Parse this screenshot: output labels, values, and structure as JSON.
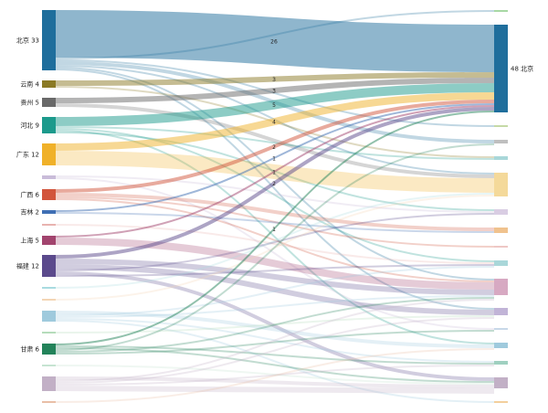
{
  "chart_data": {
    "type": "sankey",
    "colors": {
      "北京": "#1f6e9c",
      "云南": "#8b7a25",
      "贵州": "#696969",
      "河北": "#1c9a8c",
      "广东": "#f0b129",
      "广西": "#d2553c",
      "吉林": "#3f6fb4",
      "上海": "#a2446e",
      "福建": "#5b4a8c",
      "甘肃": "#23835a"
    },
    "nodes": [
      {
        "name": "北京",
        "label": "北京 33",
        "side": "left",
        "value": 33,
        "color": "#1f6e9c"
      },
      {
        "name": "云南",
        "label": "云南 4",
        "side": "left",
        "value": 4,
        "color": "#8b7a25"
      },
      {
        "name": "贵州",
        "label": "贵州 5",
        "side": "left",
        "value": 5,
        "color": "#696969"
      },
      {
        "name": "河北",
        "label": "河北 9",
        "side": "left",
        "value": 9,
        "color": "#1c9a8c"
      },
      {
        "name": "广东",
        "label": "广东 12",
        "side": "left",
        "value": 12,
        "color": "#f0b129"
      },
      {
        "name": "",
        "label": "",
        "side": "left",
        "value": 2,
        "color": "#c9bcd9"
      },
      {
        "name": "广西",
        "label": "广西 6",
        "side": "left",
        "value": 6,
        "color": "#d2553c"
      },
      {
        "name": "吉林",
        "label": "吉林 2",
        "side": "left",
        "value": 2,
        "color": "#3f6fb4"
      },
      {
        "name": "",
        "label": "",
        "side": "left",
        "value": 1,
        "color": "#e8b3b0"
      },
      {
        "name": "上海",
        "label": "上海 5",
        "side": "left",
        "value": 5,
        "color": "#a2446e"
      },
      {
        "name": "福建",
        "label": "福建 12",
        "side": "left",
        "value": 12,
        "color": "#5b4a8c"
      },
      {
        "name": "",
        "label": "",
        "side": "left",
        "value": 1,
        "color": "#a9dbe0"
      },
      {
        "name": "",
        "label": "",
        "side": "left",
        "value": 1,
        "color": "#f3d5b5"
      },
      {
        "name": "",
        "label": "",
        "side": "left",
        "value": 6,
        "color": "#9fcadd"
      },
      {
        "name": "",
        "label": "",
        "side": "left",
        "value": 1,
        "color": "#b5dcbb"
      },
      {
        "name": "甘肃",
        "label": "甘肃 6",
        "side": "left",
        "value": 6,
        "color": "#23835a"
      },
      {
        "name": "",
        "label": "",
        "side": "left",
        "value": 1,
        "color": "#c6e4d2"
      },
      {
        "name": "",
        "label": "",
        "side": "left",
        "value": 8,
        "color": "#c2b0c6"
      },
      {
        "name": "",
        "label": "",
        "side": "left",
        "value": 1,
        "color": "#e9bfa7"
      },
      {
        "name": "",
        "label": "",
        "side": "right",
        "value": 1,
        "color": "#a8d8a4"
      },
      {
        "name": "北京",
        "label": "48 北京",
        "side": "right",
        "value": 48,
        "color": "#1f6e9c"
      },
      {
        "name": "",
        "label": "",
        "side": "right",
        "value": 1,
        "color": "#c5d9a6"
      },
      {
        "name": "",
        "label": "",
        "side": "right",
        "value": 2,
        "color": "#bfbfbf"
      },
      {
        "name": "",
        "label": "",
        "side": "right",
        "value": 2,
        "color": "#a9d7d9"
      },
      {
        "name": "",
        "label": "",
        "side": "right",
        "value": 13,
        "color": "#f4d99a"
      },
      {
        "name": "",
        "label": "",
        "side": "right",
        "value": 3,
        "color": "#d9cde3"
      },
      {
        "name": "",
        "label": "",
        "side": "right",
        "value": 3,
        "color": "#f0c28e"
      },
      {
        "name": "",
        "label": "",
        "side": "right",
        "value": 1,
        "color": "#eec7c5"
      },
      {
        "name": "",
        "label": "",
        "side": "right",
        "value": 3,
        "color": "#a9d7d9"
      },
      {
        "name": "",
        "label": "",
        "side": "right",
        "value": 9,
        "color": "#d7a9c2"
      },
      {
        "name": "",
        "label": "",
        "side": "right",
        "value": 4,
        "color": "#c1b4d7"
      },
      {
        "name": "",
        "label": "",
        "side": "right",
        "value": 1,
        "color": "#c8d8e8"
      },
      {
        "name": "",
        "label": "",
        "side": "right",
        "value": 3,
        "color": "#9fcadd"
      },
      {
        "name": "",
        "label": "",
        "side": "right",
        "value": 2,
        "color": "#9fd0c0"
      },
      {
        "name": "",
        "label": "",
        "side": "right",
        "value": 6,
        "color": "#c2b0c6"
      },
      {
        "name": "",
        "label": "",
        "side": "right",
        "value": 1,
        "color": "#f3cf9d"
      }
    ],
    "links": [
      {
        "source": 0,
        "target": 20,
        "value": 26,
        "label": "26"
      },
      {
        "source": 0,
        "target": 19,
        "value": 1
      },
      {
        "source": 0,
        "target": 21,
        "value": 1
      },
      {
        "source": 0,
        "target": 22,
        "value": 2
      },
      {
        "source": 0,
        "target": 24,
        "value": 1
      },
      {
        "source": 0,
        "target": 29,
        "value": 1
      },
      {
        "source": 0,
        "target": 30,
        "value": 1
      },
      {
        "source": 1,
        "target": 20,
        "value": 3,
        "label": "3"
      },
      {
        "source": 1,
        "target": 23,
        "value": 1
      },
      {
        "source": 2,
        "target": 20,
        "value": 3,
        "label": "3"
      },
      {
        "source": 2,
        "target": 24,
        "value": 2
      },
      {
        "source": 3,
        "target": 20,
        "value": 5,
        "label": "5"
      },
      {
        "source": 3,
        "target": 23,
        "value": 1
      },
      {
        "source": 3,
        "target": 28,
        "value": 1
      },
      {
        "source": 3,
        "target": 32,
        "value": 1
      },
      {
        "source": 3,
        "target": 25,
        "value": 1
      },
      {
        "source": 4,
        "target": 20,
        "value": 4,
        "label": "4"
      },
      {
        "source": 4,
        "target": 24,
        "value": 8
      },
      {
        "source": 5,
        "target": 25,
        "value": 1
      },
      {
        "source": 5,
        "target": 31,
        "value": 1
      },
      {
        "source": 6,
        "target": 20,
        "value": 2,
        "label": "2"
      },
      {
        "source": 6,
        "target": 26,
        "value": 2
      },
      {
        "source": 6,
        "target": 27,
        "value": 1
      },
      {
        "source": 6,
        "target": 29,
        "value": 1
      },
      {
        "source": 7,
        "target": 20,
        "value": 1,
        "label": "1"
      },
      {
        "source": 7,
        "target": 26,
        "value": 1
      },
      {
        "source": 8,
        "target": 28,
        "value": 1
      },
      {
        "source": 9,
        "target": 20,
        "value": 1,
        "label": "1"
      },
      {
        "source": 9,
        "target": 29,
        "value": 4
      },
      {
        "source": 10,
        "target": 20,
        "value": 2,
        "label": "2"
      },
      {
        "source": 10,
        "target": 29,
        "value": 3
      },
      {
        "source": 10,
        "target": 30,
        "value": 3
      },
      {
        "source": 10,
        "target": 25,
        "value": 1
      },
      {
        "source": 10,
        "target": 34,
        "value": 2
      },
      {
        "source": 10,
        "target": 28,
        "value": 1
      },
      {
        "source": 11,
        "target": 24,
        "value": 1
      },
      {
        "source": 12,
        "target": 24,
        "value": 1
      },
      {
        "source": 13,
        "target": 32,
        "value": 2
      },
      {
        "source": 13,
        "target": 28,
        "value": 1
      },
      {
        "source": 13,
        "target": 29,
        "value": 1
      },
      {
        "source": 13,
        "target": 33,
        "value": 1
      },
      {
        "source": 13,
        "target": 35,
        "value": 1
      },
      {
        "source": 14,
        "target": 30,
        "value": 1
      },
      {
        "source": 15,
        "target": 20,
        "value": 1,
        "label": "1"
      },
      {
        "source": 15,
        "target": 33,
        "value": 1
      },
      {
        "source": 15,
        "target": 34,
        "value": 1
      },
      {
        "source": 15,
        "target": 22,
        "value": 1
      },
      {
        "source": 15,
        "target": 29,
        "value": 1
      },
      {
        "source": 15,
        "target": 31,
        "value": 1
      },
      {
        "source": 16,
        "target": 34,
        "value": 1
      },
      {
        "source": 17,
        "target": 34,
        "value": 2
      },
      {
        "source": 17,
        "target": 29,
        "value": 1
      },
      {
        "source": 17,
        "target": 30,
        "value": 1
      },
      {
        "source": 17,
        "target": 33,
        "value": 1
      },
      {
        "source": 17,
        "target": 34,
        "value": 3
      },
      {
        "source": 18,
        "target": 32,
        "value": 1
      }
    ]
  }
}
